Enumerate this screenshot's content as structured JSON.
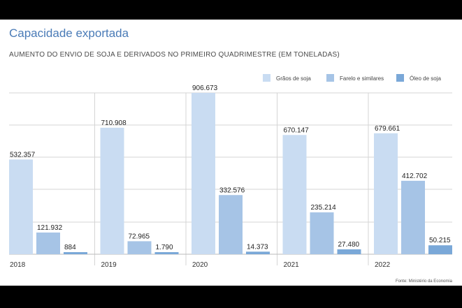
{
  "title": "Capacidade exportada",
  "subtitle": "AUMENTO DO ENVIO DE SOJA E DERIVADOS NO PRIMEIRO QUADRIMESTRE (EM TONELADAS)",
  "source": "Fonte: Ministério da Economia",
  "colors": {
    "title": "#4a7bb7",
    "series": [
      "#c9dcf2",
      "#a6c4e6",
      "#7aa8d8"
    ],
    "grid": "#d4d4d4"
  },
  "chart_data": {
    "type": "bar",
    "title": "Capacidade exportada",
    "subtitle": "AUMENTO DO ENVIO DE SOJA E DERIVADOS NO PRIMEIRO QUADRIMESTRE (EM TONELADAS)",
    "categories": [
      "2018",
      "2019",
      "2020",
      "2021",
      "2022"
    ],
    "series": [
      {
        "name": "Grãos de soja",
        "values": [
          532357,
          710908,
          906673,
          670147,
          679661
        ],
        "labels": [
          "532.357",
          "710.908",
          "906.673",
          "670.147",
          "679.661"
        ]
      },
      {
        "name": "Farelo e similares",
        "values": [
          121932,
          72965,
          332576,
          235214,
          412702
        ],
        "labels": [
          "121.932",
          "72.965",
          "332.576",
          "235.214",
          "412.702"
        ]
      },
      {
        "name": "Óleo de soja",
        "values": [
          884,
          1790,
          14373,
          27480,
          50215
        ],
        "labels": [
          "884",
          "1.790",
          "14.373",
          "27.480",
          "50.215"
        ]
      }
    ],
    "xlabel": "",
    "ylabel": "",
    "ylim": [
      0,
      906673
    ],
    "grid": true,
    "legend": "top-right"
  }
}
